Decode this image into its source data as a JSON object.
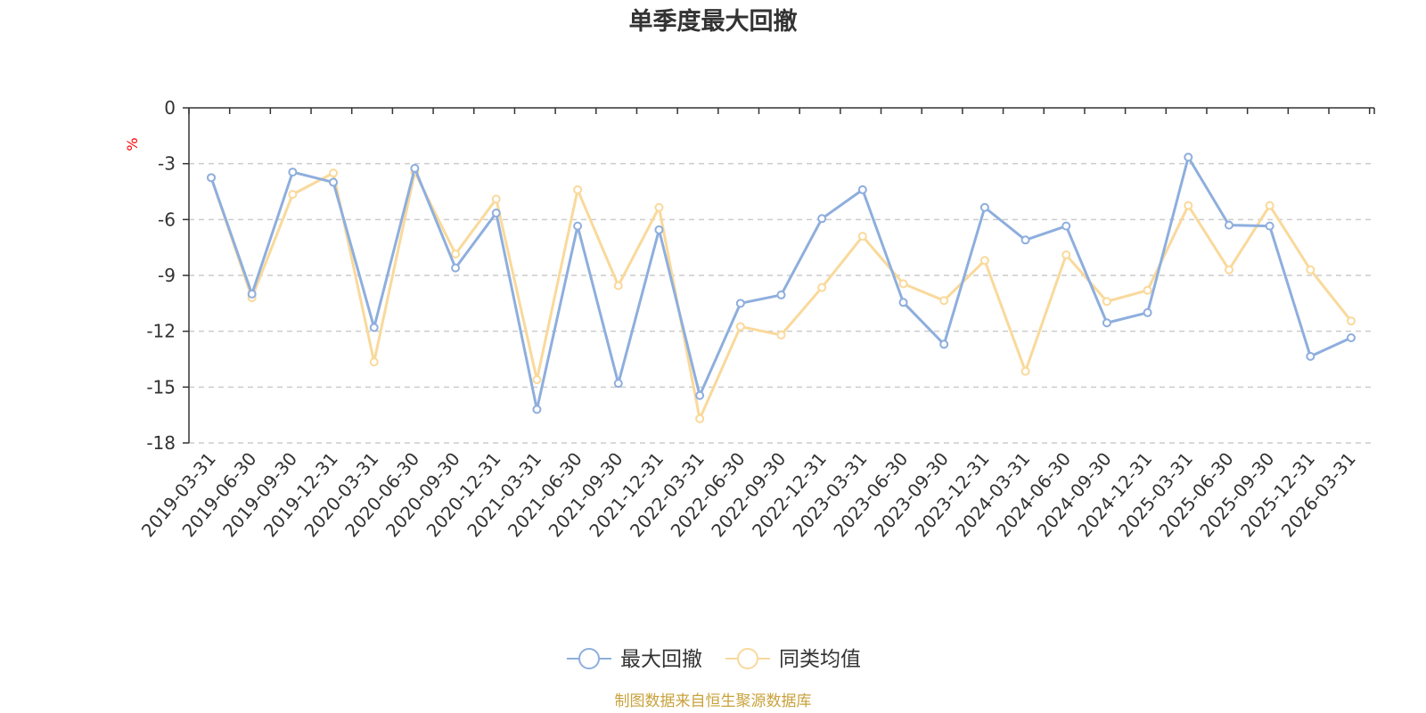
{
  "chart_data": {
    "type": "line",
    "title": "单季度最大回撤",
    "ylabel": "%",
    "xlabel": "",
    "ylim": [
      -18,
      0
    ],
    "yticks": [
      0,
      -3,
      -6,
      -9,
      -12,
      -15,
      -18
    ],
    "grid": true,
    "legend_position": "bottom-center",
    "categories": [
      "2019-03-31",
      "2019-06-30",
      "2019-09-30",
      "2019-12-31",
      "2020-03-31",
      "2020-06-30",
      "2020-09-30",
      "2020-12-31",
      "2021-03-31",
      "2021-06-30",
      "2021-09-30",
      "2021-12-31",
      "2022-03-31",
      "2022-06-30",
      "2022-09-30",
      "2022-12-31",
      "2023-03-31",
      "2023-06-30",
      "2023-09-30",
      "2023-12-31",
      "2024-03-31",
      "2024-06-30",
      "2024-09-30",
      "2024-12-31",
      "2025-03-31",
      "2025-06-30",
      "2025-09-30",
      "2025-12-31",
      "2026-03-31"
    ],
    "series": [
      {
        "name": "最大回撤",
        "color": "#8eaedd",
        "values": [
          -3.75,
          -10.0,
          -3.45,
          -4.0,
          -11.8,
          -3.25,
          -8.6,
          -5.65,
          -16.2,
          -6.35,
          -14.8,
          -6.55,
          -15.45,
          -10.5,
          -10.05,
          -5.95,
          -4.4,
          -10.45,
          -12.7,
          -5.35,
          -7.1,
          -6.35,
          -11.55,
          -11.0,
          -2.65,
          -6.3,
          -6.35,
          -13.35,
          -12.35
        ]
      },
      {
        "name": "同类均值",
        "color": "#f9d99b",
        "values": [
          -3.75,
          -10.2,
          -4.65,
          -3.5,
          -13.65,
          -3.45,
          -7.85,
          -4.9,
          -14.6,
          -4.4,
          -9.55,
          -5.35,
          -16.7,
          -11.75,
          -12.2,
          -9.65,
          -6.9,
          -9.45,
          -10.35,
          -8.2,
          -14.15,
          -7.9,
          -10.4,
          -9.8,
          -5.25,
          -8.7,
          -5.25,
          -8.7,
          -11.45
        ]
      }
    ],
    "source": "制图数据来自恒生聚源数据库",
    "colors": {
      "axis": "#333333",
      "grid": "#cccccc",
      "unit": "#ff0000",
      "source": "#c8a23c"
    }
  }
}
